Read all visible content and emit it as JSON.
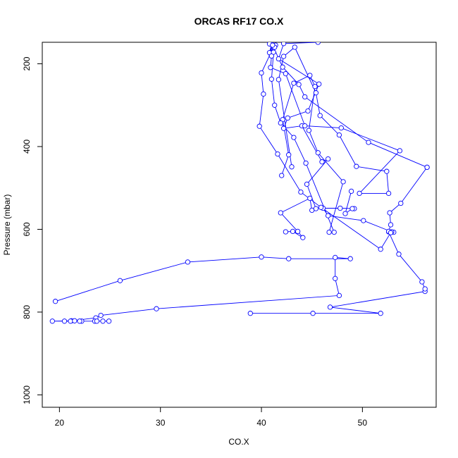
{
  "chart_data": {
    "type": "line",
    "title": "ORCAS RF17 CO.X",
    "xlabel": "CO.X",
    "ylabel": "Pressure (mbar)",
    "xlim": [
      18.3,
      57.3
    ],
    "ylim": [
      1030,
      148
    ],
    "y_inverted": true,
    "grid": false,
    "x_ticks": [
      20,
      30,
      40,
      50
    ],
    "y_ticks": [
      200,
      400,
      600,
      800,
      1000
    ],
    "series_color": "#0000ff",
    "series": [
      {
        "points": [
          [
            19.6,
            774
          ],
          [
            26.0,
            724
          ],
          [
            32.7,
            679
          ],
          [
            40.0,
            667
          ],
          [
            42.7,
            671
          ],
          [
            48.8,
            671
          ],
          [
            47.3,
            668
          ],
          [
            47.3,
            719
          ],
          [
            47.7,
            760
          ],
          [
            29.6,
            792
          ],
          [
            24.1,
            808
          ],
          [
            23.6,
            814
          ],
          [
            21.2,
            821
          ],
          [
            19.3,
            822
          ],
          [
            20.5,
            822
          ],
          [
            21.1,
            822
          ],
          [
            21.5,
            821
          ],
          [
            22.2,
            822
          ],
          [
            23.5,
            822
          ],
          [
            24.3,
            822
          ],
          [
            24.9,
            822
          ],
          [
            23.7,
            822
          ],
          [
            22.0,
            822
          ]
        ]
      },
      {
        "points": [
          [
            38.9,
            803
          ],
          [
            45.1,
            803
          ],
          [
            51.8,
            803
          ],
          [
            46.8,
            788
          ],
          [
            56.2,
            750
          ],
          [
            56.2,
            744
          ],
          [
            55.9,
            727
          ],
          [
            53.6,
            660
          ],
          [
            52.6,
            606
          ],
          [
            53.1,
            607
          ],
          [
            52.9,
            606
          ],
          [
            50.1,
            579
          ],
          [
            46.6,
            567
          ],
          [
            46.1,
            549
          ],
          [
            47.8,
            549
          ],
          [
            49.2,
            550
          ],
          [
            49.0,
            550
          ],
          [
            48.3,
            562
          ],
          [
            48.9,
            508
          ]
        ]
      },
      {
        "points": [
          [
            42.4,
            606
          ],
          [
            43.1,
            605
          ],
          [
            44.1,
            620
          ],
          [
            43.6,
            605
          ],
          [
            41.9,
            560
          ],
          [
            44.8,
            525
          ],
          [
            45.0,
            554
          ],
          [
            45.4,
            550
          ],
          [
            44.5,
            491
          ],
          [
            46.6,
            430
          ],
          [
            46.0,
            437
          ],
          [
            44.0,
            350
          ],
          [
            42.2,
            356
          ],
          [
            42.6,
            331
          ],
          [
            44.6,
            314
          ],
          [
            45.7,
            249
          ],
          [
            41.7,
            188
          ],
          [
            42.2,
            151
          ],
          [
            45.6,
            148
          ]
        ]
      },
      {
        "points": [
          [
            56.4,
            450
          ],
          [
            53.8,
            537
          ],
          [
            52.7,
            560
          ],
          [
            52.8,
            589
          ],
          [
            52.6,
            605
          ],
          [
            52.8,
            608
          ],
          [
            51.8,
            648
          ],
          [
            45.9,
            547
          ],
          [
            43.9,
            510
          ],
          [
            41.6,
            418
          ],
          [
            39.8,
            351
          ],
          [
            40.2,
            273
          ],
          [
            40.0,
            222
          ],
          [
            40.9,
            175
          ],
          [
            41.0,
            153
          ],
          [
            40.8,
            173
          ],
          [
            41.4,
            155
          ]
        ]
      },
      {
        "points": [
          [
            43.0,
            449
          ],
          [
            41.7,
            238
          ],
          [
            42.2,
            182
          ],
          [
            43.3,
            160
          ],
          [
            45.4,
            270
          ],
          [
            45.8,
            325
          ],
          [
            47.7,
            372
          ],
          [
            49.4,
            448
          ],
          [
            52.4,
            460
          ],
          [
            52.6,
            513
          ],
          [
            49.7,
            513
          ],
          [
            53.7,
            410
          ],
          [
            47.9,
            355
          ],
          [
            44.3,
            350
          ],
          [
            42.4,
            224
          ],
          [
            40.9,
            209
          ],
          [
            41.0,
            181
          ],
          [
            41.3,
            160
          ]
        ]
      },
      {
        "points": [
          [
            42.0,
            470
          ],
          [
            42.7,
            420
          ],
          [
            42.1,
            335
          ],
          [
            43.2,
            247
          ],
          [
            44.8,
            228
          ],
          [
            45.3,
            255
          ],
          [
            44.7,
            361
          ],
          [
            45.6,
            415
          ],
          [
            48.1,
            485
          ],
          [
            46.7,
            607
          ],
          [
            47.2,
            607
          ],
          [
            44.4,
            440
          ],
          [
            43.2,
            378
          ],
          [
            41.9,
            343
          ],
          [
            41.3,
            300
          ],
          [
            41.0,
            237
          ],
          [
            41.2,
            172
          ],
          [
            40.8,
            152
          ]
        ]
      },
      {
        "points": [
          [
            56.4,
            450
          ],
          [
            50.6,
            390
          ],
          [
            44.3,
            280
          ],
          [
            43.7,
            250
          ],
          [
            42.1,
            208
          ],
          [
            41.1,
            155
          ]
        ]
      }
    ]
  }
}
